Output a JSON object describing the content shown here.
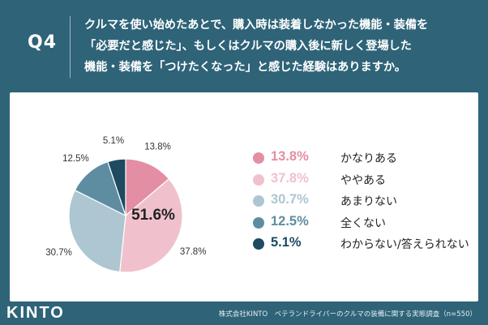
{
  "question": {
    "label": "Q4",
    "lines": [
      "クルマを使い始めたあとで、購入時は装着しなかった機能・装備を",
      "「必要だと感じた」、もしくはクルマの購入後に新しく登場した",
      "機能・装備を「つけたくなった」と感じた経験はありますか。"
    ]
  },
  "colors": {
    "background": "#2e6378",
    "card": "#ffffff"
  },
  "chart_data": {
    "type": "pie",
    "highlight_label": "51.6%",
    "slices": [
      {
        "label": "かなりある",
        "value": 13.8,
        "pct_label": "13.8%",
        "color": "#e48ea3"
      },
      {
        "label": "ややある",
        "value": 37.8,
        "pct_label": "37.8%",
        "color": "#f0c1cc"
      },
      {
        "label": "あまりない",
        "value": 30.7,
        "pct_label": "30.7%",
        "color": "#adc6d2"
      },
      {
        "label": "全くない",
        "value": 12.5,
        "pct_label": "12.5%",
        "color": "#5e8da2"
      },
      {
        "label": "わからない/答えられない",
        "value": 5.1,
        "pct_label": "5.1%",
        "color": "#1e4a62"
      }
    ],
    "legend_placement": "right",
    "start_angle_deg": 0,
    "direction": "clockwise"
  },
  "footer": {
    "logo": "KINTO",
    "note": "株式会社KINTO　ベテランドライバーのクルマの装備に関する実態調査（n=550）"
  }
}
